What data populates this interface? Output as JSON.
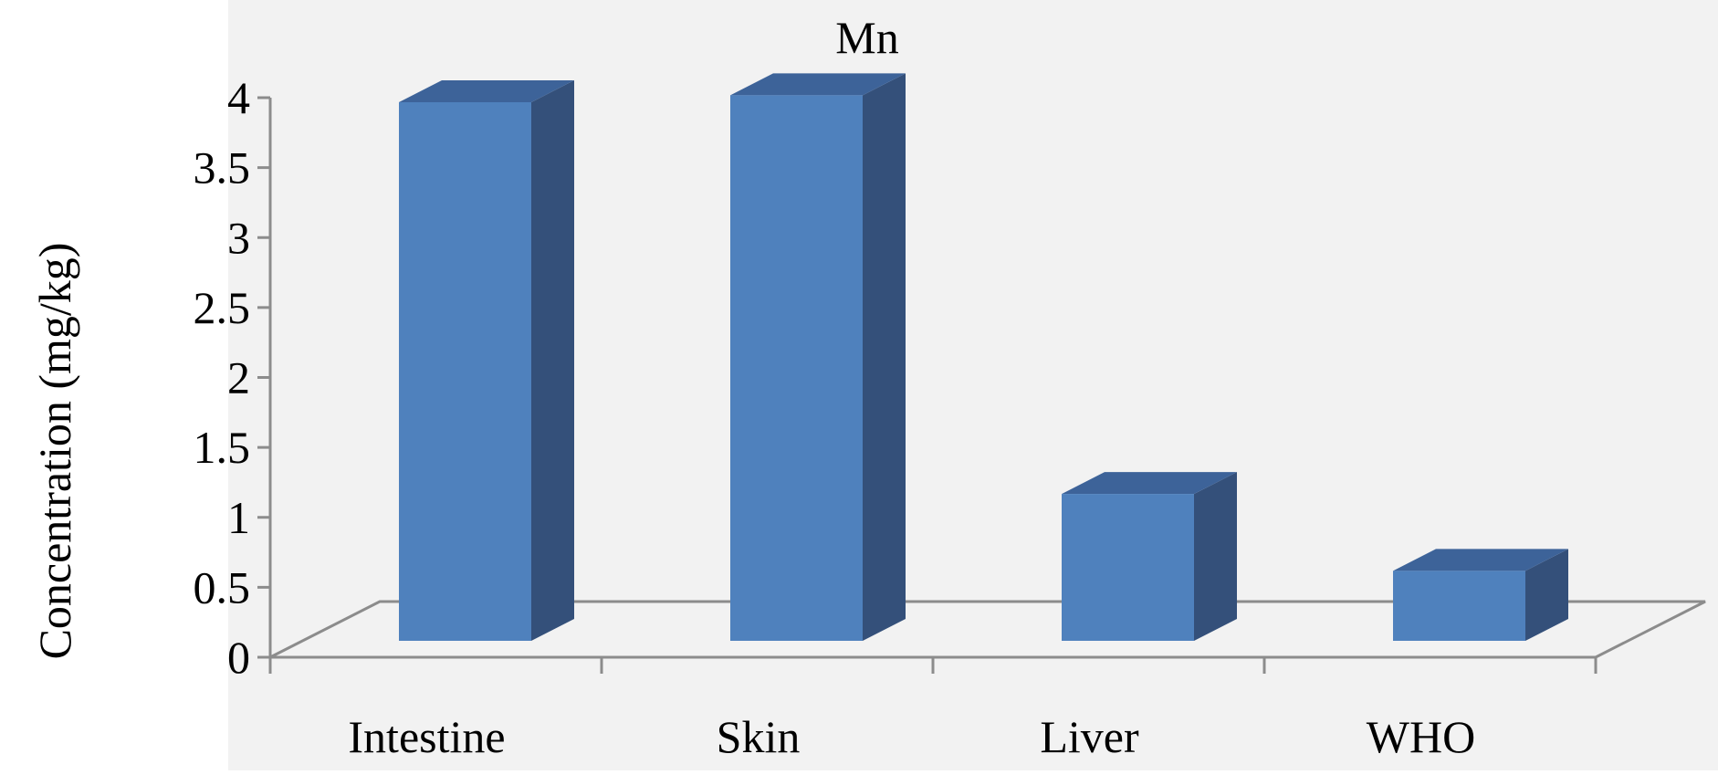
{
  "chart_data": {
    "type": "bar",
    "title": "Mn",
    "categories": [
      "Intestine",
      "Skin",
      "Liver",
      "WHO"
    ],
    "values": [
      3.85,
      3.9,
      1.05,
      0.5
    ],
    "xlabel": "",
    "ylabel": "Concentration (mg/kg)",
    "ylim": [
      0,
      4
    ],
    "yticks": [
      "0",
      "0.5",
      "1",
      "1.5",
      "2",
      "2.5",
      "3",
      "3.5",
      "4"
    ],
    "grid": false,
    "legend": "none",
    "colors": {
      "bar_front": "#4f81bd",
      "bar_side": "#34507a",
      "bar_top": "#3d6399",
      "axis": "#8c8c8c",
      "background": "#f2f2f2"
    }
  }
}
